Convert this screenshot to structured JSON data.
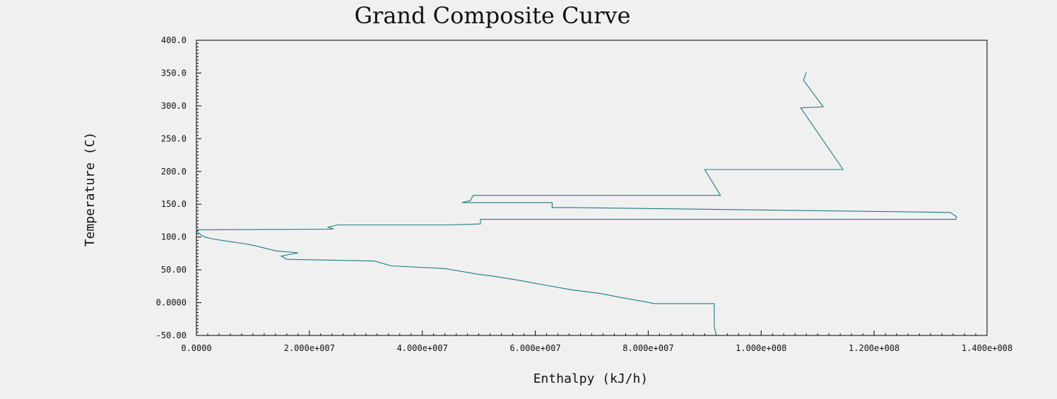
{
  "chart_data": {
    "type": "line",
    "title": "Grand Composite Curve",
    "xlabel": "Enthalpy (kJ/h)",
    "ylabel": "Temperature (C)",
    "xlim": [
      0,
      140000000
    ],
    "ylim": [
      -50,
      400
    ],
    "x_ticks": [
      0,
      20000000,
      40000000,
      60000000,
      80000000,
      100000000,
      120000000,
      140000000
    ],
    "x_tick_labels": [
      "0.0000",
      "2.000e+007",
      "4.000e+007",
      "6.000e+007",
      "8.000e+007",
      "1.000e+008",
      "1.200e+008",
      "1.400e+008"
    ],
    "y_ticks": [
      -50,
      0,
      50,
      100,
      150,
      200,
      250,
      300,
      350,
      400
    ],
    "y_tick_labels": [
      "-50.00",
      "0.0000",
      "50.00",
      "100.0",
      "150.0",
      "200.0",
      "250.0",
      "300.0",
      "350.0",
      "400.0"
    ],
    "minor_ticks_per_major": 10,
    "grid": false,
    "legend": "none",
    "colors": {
      "line": "#1a7c84",
      "background": "#f0f0f0",
      "frame": "#000000"
    },
    "series": [
      {
        "x": [
          92100000,
          91700000,
          91700000,
          81100000,
          79000000,
          75000000,
          71500000,
          66500000,
          61500000,
          57500000,
          52500000,
          50000000,
          44000000,
          34500000,
          31500000,
          16000000,
          15000000,
          18000000,
          14000000,
          10500000,
          10000000,
          8500000,
          6000000,
          3000000,
          1500000,
          500000,
          0,
          24300000,
          23300000,
          25000000,
          45000000,
          50300000,
          50300000,
          134500000,
          134600000,
          133500000,
          66500000,
          63000000,
          63000000,
          55000000,
          47000000,
          48500000,
          49000000,
          92800000,
          90000000,
          114500000,
          107000000,
          111000000,
          107500000,
          108000000
        ],
        "y": [
          -50,
          -37,
          -1.5,
          -1.5,
          2,
          8,
          14,
          19.5,
          27,
          33.5,
          40.5,
          43,
          52,
          56,
          63.5,
          66,
          71,
          76,
          79,
          86.5,
          87.5,
          90,
          93,
          97,
          100,
          105,
          111,
          112,
          115,
          118.5,
          118.5,
          120,
          127,
          127,
          131,
          137.5,
          145,
          145,
          152.5,
          152.5,
          152.5,
          155.5,
          163.5,
          163.5,
          203,
          203,
          297,
          298.5,
          339,
          351
        ]
      }
    ]
  }
}
